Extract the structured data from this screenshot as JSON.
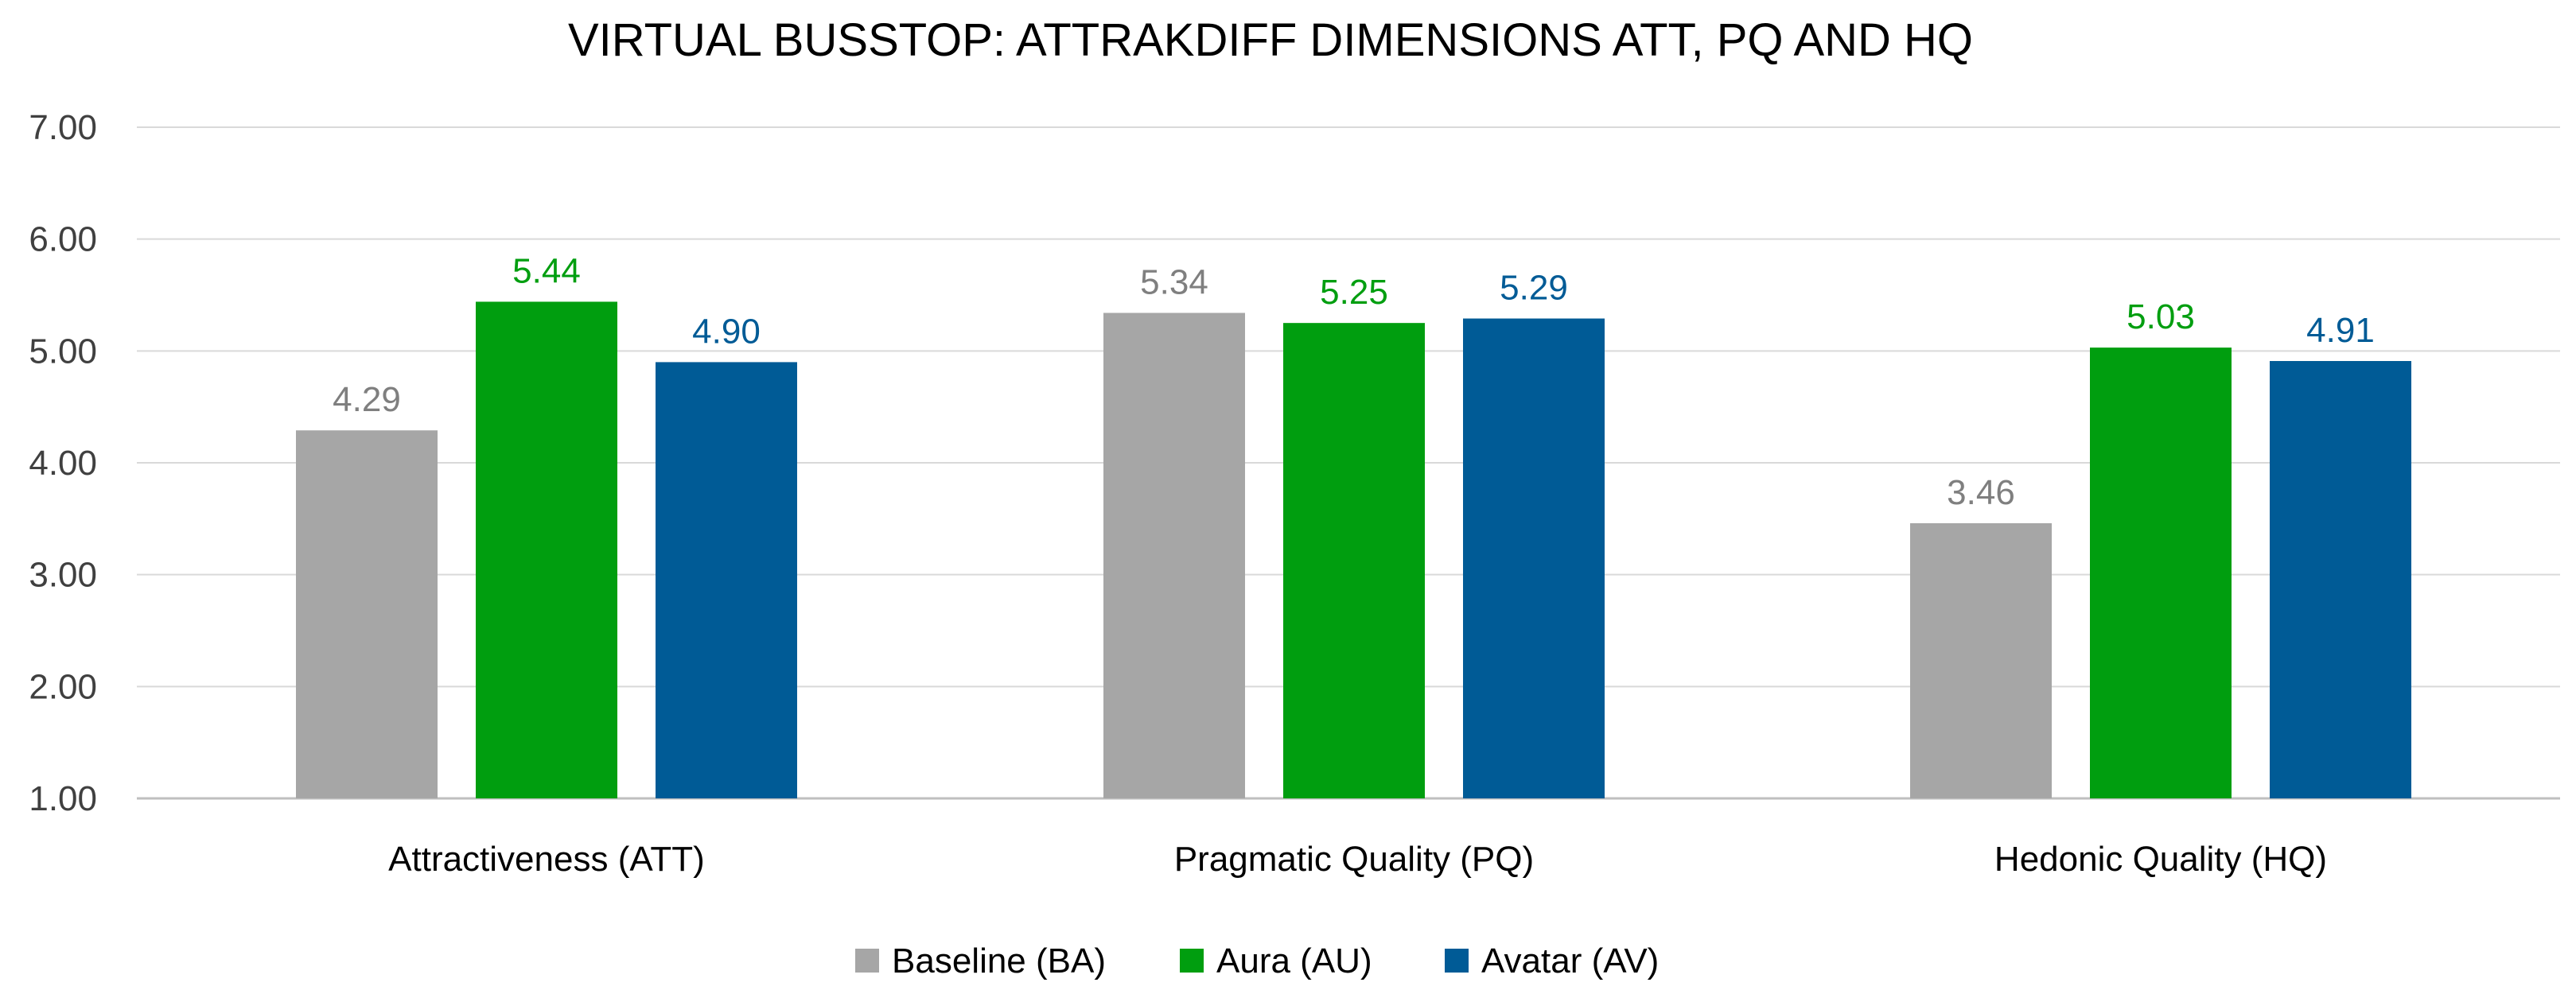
{
  "chart_data": {
    "type": "bar",
    "title": "VIRTUAL BUSSTOP: ATTRAKDIFF DIMENSIONS ATT, PQ AND HQ",
    "categories": [
      "Attractiveness (ATT)",
      "Pragmatic Quality (PQ)",
      "Hedonic Quality (HQ)"
    ],
    "series": [
      {
        "name": "Baseline (BA)",
        "color": "#a6a6a6",
        "values": [
          4.29,
          5.34,
          3.46
        ],
        "labels": [
          "4.29",
          "5.34",
          "3.46"
        ]
      },
      {
        "name": "Aura (AU)",
        "color": "#009e0f",
        "values": [
          5.44,
          5.25,
          5.03
        ],
        "labels": [
          "5.44",
          "5.25",
          "5.03"
        ]
      },
      {
        "name": "Avatar (AV)",
        "color": "#005b96",
        "values": [
          4.9,
          5.29,
          4.91
        ],
        "labels": [
          "4.90",
          "5.29",
          "4.91"
        ]
      }
    ],
    "ylim": [
      1,
      7
    ],
    "yticks": [
      1,
      2,
      3,
      4,
      5,
      6,
      7
    ],
    "ytick_labels": [
      "1.00",
      "2.00",
      "3.00",
      "4.00",
      "5.00",
      "6.00",
      "7.00"
    ],
    "xlabel": "",
    "ylabel": "",
    "grid": true,
    "legend_position": "bottom-center",
    "colors": {
      "grid": "#d9d9d9",
      "axis": "#bfbfbf",
      "label_baseline": "#7f7f7f"
    }
  }
}
